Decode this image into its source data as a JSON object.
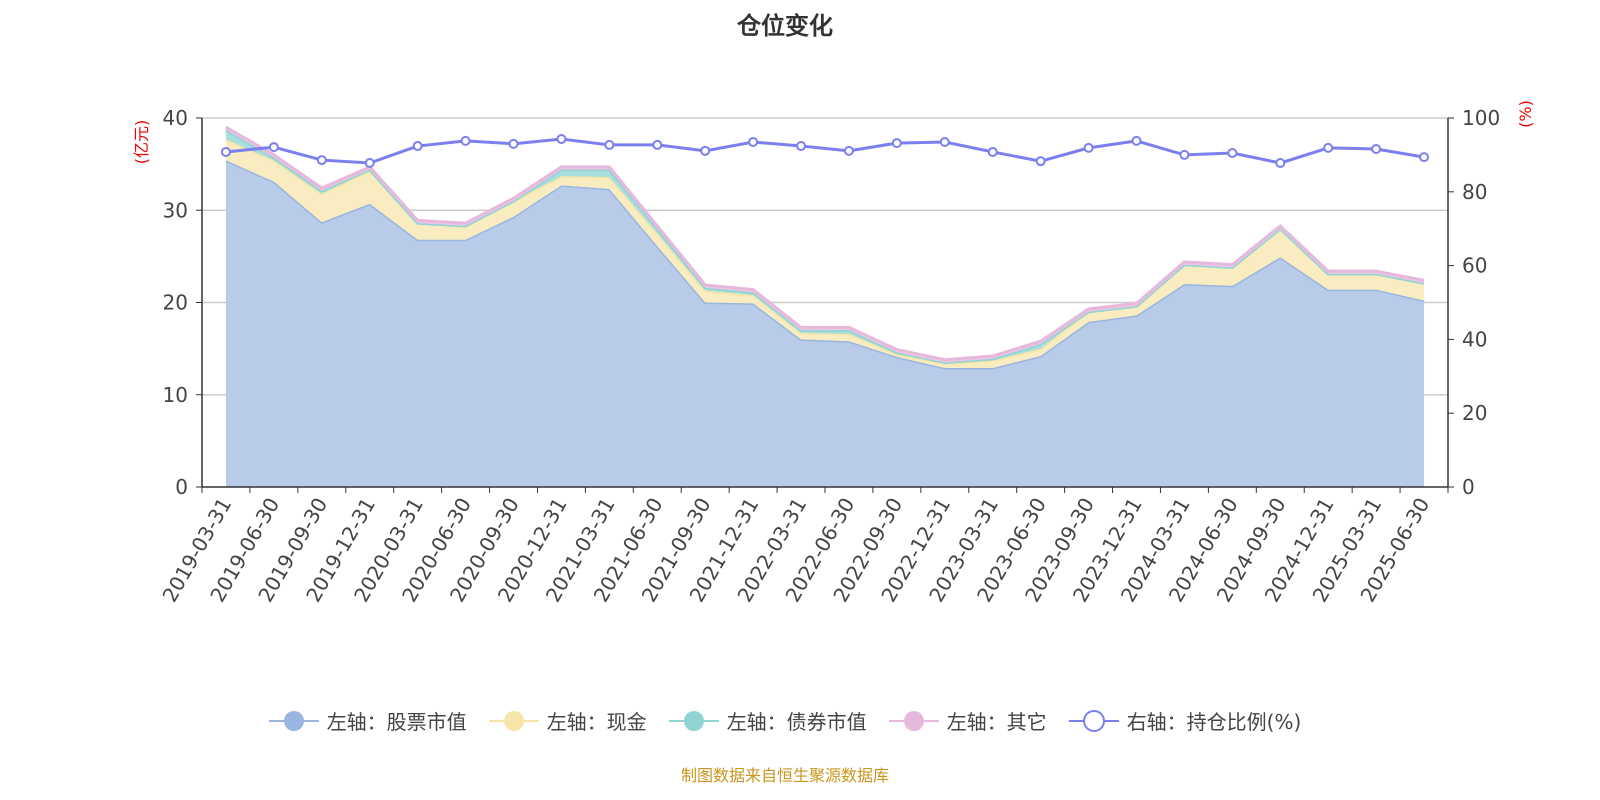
{
  "title": "仓位变化",
  "footer": "制图数据来自恒生聚源数据库",
  "chart_data": {
    "type": "area",
    "stacked": true,
    "title": "仓位变化",
    "categories": [
      "2019-03-31",
      "2019-06-30",
      "2019-09-30",
      "2019-12-31",
      "2020-03-31",
      "2020-06-30",
      "2020-09-30",
      "2020-12-31",
      "2021-03-31",
      "2021-06-30",
      "2021-09-30",
      "2021-12-31",
      "2022-03-31",
      "2022-06-30",
      "2022-09-30",
      "2022-12-31",
      "2023-03-31",
      "2023-06-30",
      "2023-09-30",
      "2023-12-31",
      "2024-03-31",
      "2024-06-30",
      "2024-09-30",
      "2024-12-31",
      "2025-03-31",
      "2025-06-30"
    ],
    "left_axis": {
      "label": "(亿元)",
      "ylim": [
        0,
        40
      ],
      "ticks": [
        "0",
        "10",
        "20",
        "30",
        "40"
      ]
    },
    "right_axis": {
      "label": "(%)",
      "ylim": [
        0,
        100
      ],
      "ticks": [
        "0",
        "20",
        "40",
        "60",
        "80",
        "100"
      ]
    },
    "grid": true,
    "legend_position": "bottom",
    "series": [
      {
        "name": "左轴：股票市值",
        "axis": "left",
        "color": "#9ab5e0",
        "fill": "#b8cbe8",
        "values": [
          35.4,
          33.1,
          28.7,
          30.7,
          26.8,
          26.8,
          29.3,
          32.7,
          32.3,
          26.1,
          20.0,
          19.9,
          16.0,
          15.8,
          14.1,
          12.9,
          12.9,
          14.2,
          17.9,
          18.6,
          22.0,
          21.8,
          24.9,
          21.4,
          21.4,
          20.2
        ]
      },
      {
        "name": "左轴：现金",
        "axis": "left",
        "color": "#f5e6a8",
        "fill": "#f8ecc0",
        "values": [
          2.3,
          2.3,
          3.1,
          3.6,
          1.8,
          1.5,
          1.7,
          1.0,
          1.3,
          1.4,
          1.3,
          0.9,
          0.7,
          0.8,
          0.3,
          0.5,
          0.8,
          0.8,
          1.1,
          1.0,
          2.1,
          2.0,
          3.1,
          1.7,
          1.7,
          1.9
        ]
      },
      {
        "name": "左轴：债券市值",
        "axis": "left",
        "color": "#8fd3d3",
        "fill": "#a8dede",
        "values": [
          1.0,
          0.3,
          0.3,
          0.1,
          0,
          0,
          0,
          0.7,
          0.8,
          0.5,
          0.3,
          0.3,
          0.3,
          0.4,
          0.2,
          0.1,
          0.2,
          0.5,
          0,
          0,
          0,
          0,
          0,
          0,
          0,
          0
        ]
      },
      {
        "name": "左轴：其它",
        "axis": "left",
        "color": "#e6b8dc",
        "fill": "#ecc8e4",
        "values": [
          0.3,
          0.3,
          0.3,
          0.3,
          0.3,
          0.3,
          0.3,
          0.3,
          0.3,
          0.3,
          0.3,
          0.3,
          0.3,
          0.3,
          0.3,
          0.3,
          0.3,
          0.3,
          0.3,
          0.3,
          0.3,
          0.3,
          0.3,
          0.3,
          0.3,
          0.3
        ]
      },
      {
        "name": "右轴：持仓比例(%)",
        "axis": "right",
        "type": "line",
        "color": "#7b7ff0",
        "values": [
          90.8,
          92.1,
          88.6,
          87.8,
          92.4,
          93.8,
          93.0,
          94.3,
          92.7,
          92.7,
          91.1,
          93.5,
          92.4,
          91.1,
          93.2,
          93.5,
          90.8,
          88.3,
          91.9,
          93.8,
          90.0,
          90.5,
          87.8,
          91.9,
          91.6,
          89.4
        ]
      }
    ]
  }
}
